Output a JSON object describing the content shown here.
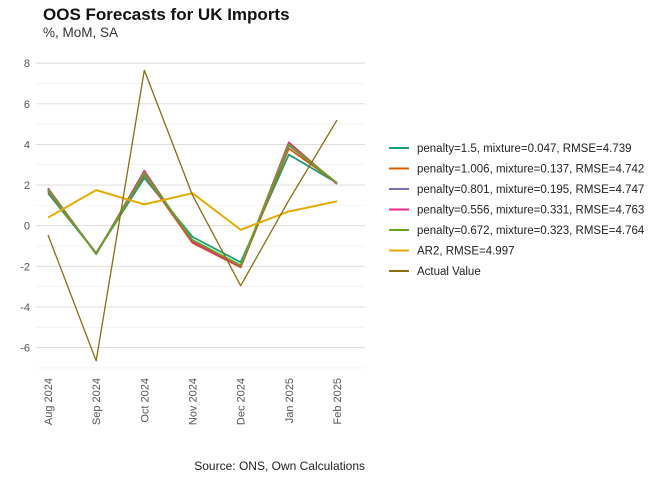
{
  "title": "OOS Forecasts for UK Imports",
  "subtitle": "%, MoM, SA",
  "caption": "Source: ONS, Own Calculations",
  "chart_data": {
    "type": "line",
    "categories": [
      "Aug 2024",
      "Sep 2024",
      "Oct 2024",
      "Nov 2024",
      "Dec 2024",
      "Jan 2025",
      "Feb 2025"
    ],
    "ylim": [
      -7.2,
      8.4
    ],
    "yticks": [
      -6,
      -4,
      -2,
      0,
      2,
      4,
      6,
      8
    ],
    "grid": true,
    "legend_position": "right",
    "series": [
      {
        "name": "penalty=1.5, mixture=0.047, RMSE=4.739",
        "color": "#1b9e77",
        "values": [
          1.6,
          -1.35,
          2.35,
          -0.55,
          -1.8,
          3.5,
          2.1
        ]
      },
      {
        "name": "penalty=1.006, mixture=0.137, RMSE=4.742",
        "color": "#d95f02",
        "values": [
          1.7,
          -1.35,
          2.5,
          -0.85,
          -2.05,
          3.8,
          2.1
        ]
      },
      {
        "name": "penalty=0.801, mixture=0.195, RMSE=4.747",
        "color": "#7570b3",
        "values": [
          1.75,
          -1.35,
          2.55,
          -0.75,
          -2.0,
          3.95,
          2.1
        ]
      },
      {
        "name": "penalty=0.556, mixture=0.331, RMSE=4.763",
        "color": "#e7298a",
        "values": [
          1.85,
          -1.4,
          2.7,
          -0.8,
          -2.0,
          4.1,
          2.05
        ]
      },
      {
        "name": "penalty=0.672, mixture=0.323, RMSE=4.764",
        "color": "#66a61e",
        "values": [
          1.8,
          -1.4,
          2.6,
          -0.7,
          -1.95,
          4.0,
          2.1
        ]
      },
      {
        "name": "AR2, RMSE=4.997",
        "color": "#e6ab02",
        "values": [
          0.4,
          1.75,
          1.05,
          1.6,
          -0.2,
          0.7,
          1.2
        ]
      },
      {
        "name": "Actual Value",
        "color": "#8a6d10",
        "values": [
          -0.45,
          -6.65,
          7.65,
          1.5,
          -2.95,
          1.25,
          5.2
        ]
      }
    ]
  }
}
